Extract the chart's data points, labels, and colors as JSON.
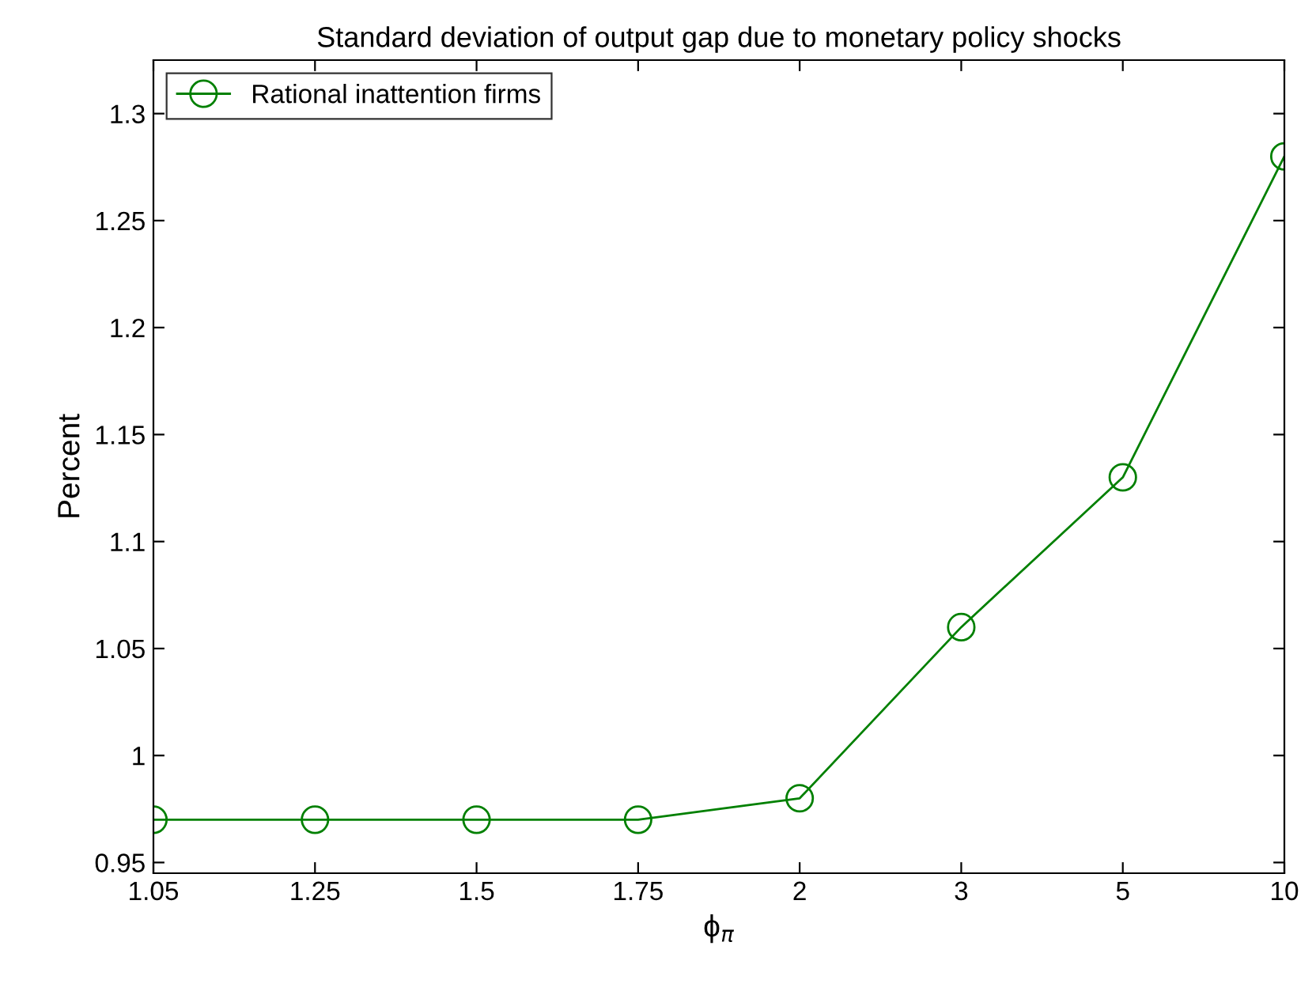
{
  "chart_data": {
    "type": "line",
    "title": "Standard deviation of output gap due to monetary policy shocks",
    "xlabel": "ϕ$_{π}$",
    "ylabel": "Percent",
    "categories": [
      "1.05",
      "1.25",
      "1.5",
      "1.75",
      "2",
      "3",
      "5",
      "10"
    ],
    "series": [
      {
        "name": "Rational inattention firms",
        "color": "#008000",
        "values": [
          0.97,
          0.97,
          0.97,
          0.97,
          0.98,
          1.06,
          1.13,
          1.28
        ]
      }
    ],
    "ylim": [
      0.945,
      1.325
    ],
    "yticks": [
      0.95,
      1,
      1.05,
      1.1,
      1.15,
      1.2,
      1.25,
      1.3
    ],
    "grid": false,
    "legend": "top left",
    "marker": "circle",
    "line_style": "solid"
  }
}
